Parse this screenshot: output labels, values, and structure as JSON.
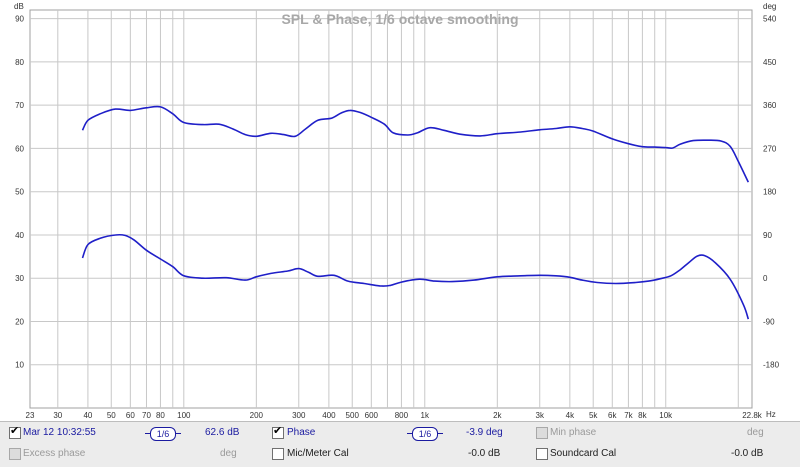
{
  "chart_data": {
    "type": "line",
    "title": "SPL & Phase, 1/6 octave smoothing",
    "xscale": "log",
    "xlim": [
      23,
      22800
    ],
    "x_ticks": [
      {
        "v": 23,
        "label": "23"
      },
      {
        "v": 30,
        "label": "30"
      },
      {
        "v": 40,
        "label": "40"
      },
      {
        "v": 50,
        "label": "50"
      },
      {
        "v": 60,
        "label": "60"
      },
      {
        "v": 70,
        "label": "70"
      },
      {
        "v": 80,
        "label": "80"
      },
      {
        "v": 100,
        "label": "100"
      },
      {
        "v": 200,
        "label": "200"
      },
      {
        "v": 300,
        "label": "300"
      },
      {
        "v": 400,
        "label": "400"
      },
      {
        "v": 500,
        "label": "500"
      },
      {
        "v": 600,
        "label": "600"
      },
      {
        "v": 800,
        "label": "800"
      },
      {
        "v": 1000,
        "label": "1k"
      },
      {
        "v": 2000,
        "label": "2k"
      },
      {
        "v": 3000,
        "label": "3k"
      },
      {
        "v": 4000,
        "label": "4k"
      },
      {
        "v": 5000,
        "label": "5k"
      },
      {
        "v": 6000,
        "label": "6k"
      },
      {
        "v": 7000,
        "label": "7k"
      },
      {
        "v": 8000,
        "label": "8k"
      },
      {
        "v": 10000,
        "label": "10k"
      },
      {
        "v": 22800,
        "label": "22.8k"
      }
    ],
    "x_minor": [
      90,
      700,
      900,
      9000,
      20000
    ],
    "x_unit": "Hz",
    "left_axis": {
      "unit": "dB",
      "min": 0,
      "max": 92,
      "ticks": [
        10,
        20,
        30,
        40,
        50,
        60,
        70,
        80,
        90
      ]
    },
    "right_axis": {
      "unit": "deg",
      "min": -270,
      "max": 558,
      "ticks": [
        {
          "v": 540,
          "label": "540"
        },
        {
          "v": 450,
          "label": "450"
        },
        {
          "v": 360,
          "label": "360"
        },
        {
          "v": 270,
          "label": "270"
        },
        {
          "v": 180,
          "label": "180"
        },
        {
          "v": 90,
          "label": "90"
        },
        {
          "v": 0,
          "label": "0"
        },
        {
          "v": -90,
          "label": "-90"
        },
        {
          "v": -180,
          "label": "-180"
        }
      ]
    },
    "grid": true,
    "series": [
      {
        "axis": "left",
        "color": "#1f1fc8",
        "points": [
          [
            38,
            64.2
          ],
          [
            40,
            66.5
          ],
          [
            45,
            68
          ],
          [
            52,
            69.1
          ],
          [
            60,
            68.8
          ],
          [
            70,
            69.4
          ],
          [
            80,
            69.6
          ],
          [
            90,
            68
          ],
          [
            100,
            66
          ],
          [
            120,
            65.5
          ],
          [
            140,
            65.6
          ],
          [
            160,
            64.5
          ],
          [
            180,
            63.2
          ],
          [
            200,
            62.8
          ],
          [
            230,
            63.5
          ],
          [
            260,
            63.2
          ],
          [
            290,
            62.8
          ],
          [
            320,
            64.5
          ],
          [
            360,
            66.5
          ],
          [
            410,
            67
          ],
          [
            450,
            68.2
          ],
          [
            490,
            68.8
          ],
          [
            540,
            68.3
          ],
          [
            600,
            67.2
          ],
          [
            680,
            65.6
          ],
          [
            740,
            63.6
          ],
          [
            850,
            63.1
          ],
          [
            930,
            63.6
          ],
          [
            1050,
            64.8
          ],
          [
            1200,
            64.2
          ],
          [
            1400,
            63.3
          ],
          [
            1700,
            62.9
          ],
          [
            2000,
            63.4
          ],
          [
            2500,
            63.8
          ],
          [
            3000,
            64.3
          ],
          [
            3500,
            64.6
          ],
          [
            4000,
            65
          ],
          [
            4500,
            64.6
          ],
          [
            5000,
            64
          ],
          [
            6000,
            62.2
          ],
          [
            7000,
            61.1
          ],
          [
            8000,
            60.4
          ],
          [
            9000,
            60.3
          ],
          [
            10000,
            60.2
          ],
          [
            10700,
            60.1
          ],
          [
            11500,
            61
          ],
          [
            13000,
            61.8
          ],
          [
            15000,
            61.9
          ],
          [
            17000,
            61.7
          ],
          [
            18500,
            60.5
          ],
          [
            20000,
            57
          ],
          [
            22000,
            52.2
          ]
        ]
      },
      {
        "axis": "right",
        "color": "#1f1fc8",
        "points": [
          [
            38,
            42
          ],
          [
            40,
            70
          ],
          [
            45,
            83
          ],
          [
            52,
            90
          ],
          [
            57,
            89
          ],
          [
            62,
            80
          ],
          [
            70,
            58
          ],
          [
            80,
            40
          ],
          [
            90,
            24
          ],
          [
            100,
            5
          ],
          [
            120,
            0
          ],
          [
            150,
            1
          ],
          [
            180,
            -4
          ],
          [
            200,
            3
          ],
          [
            230,
            10
          ],
          [
            270,
            15
          ],
          [
            300,
            20
          ],
          [
            330,
            12
          ],
          [
            360,
            4
          ],
          [
            420,
            6
          ],
          [
            480,
            -6
          ],
          [
            560,
            -11
          ],
          [
            650,
            -16
          ],
          [
            720,
            -15
          ],
          [
            800,
            -8
          ],
          [
            950,
            -2
          ],
          [
            1100,
            -6
          ],
          [
            1300,
            -7
          ],
          [
            1600,
            -4
          ],
          [
            2000,
            3
          ],
          [
            2500,
            5
          ],
          [
            3000,
            6
          ],
          [
            3500,
            5
          ],
          [
            4000,
            2
          ],
          [
            4500,
            -4
          ],
          [
            5200,
            -9
          ],
          [
            6200,
            -11
          ],
          [
            7500,
            -9
          ],
          [
            8500,
            -6
          ],
          [
            9500,
            -1
          ],
          [
            10500,
            5
          ],
          [
            11500,
            18
          ],
          [
            12500,
            33
          ],
          [
            13500,
            46
          ],
          [
            14500,
            47
          ],
          [
            16000,
            33
          ],
          [
            18500,
            -2
          ],
          [
            21000,
            -55
          ],
          [
            22000,
            -85
          ]
        ]
      }
    ]
  },
  "legend": {
    "row1": {
      "spl_checked": "✔",
      "spl_label": "Mar 12 10:32:55",
      "spl_smoothing": "1/6",
      "spl_value": "62.6 dB",
      "phase_checked": "✔",
      "phase_label": "Phase",
      "phase_smoothing": "1/6",
      "phase_value": "-3.9 deg",
      "min_phase_label": "Min phase",
      "min_phase_value": "deg"
    },
    "row2": {
      "excess_label": "Excess phase",
      "excess_value": "deg",
      "mic_label": "Mic/Meter Cal",
      "mic_value": "-0.0 dB",
      "soundcard_label": "Soundcard Cal",
      "soundcard_value": "-0.0 dB"
    }
  }
}
